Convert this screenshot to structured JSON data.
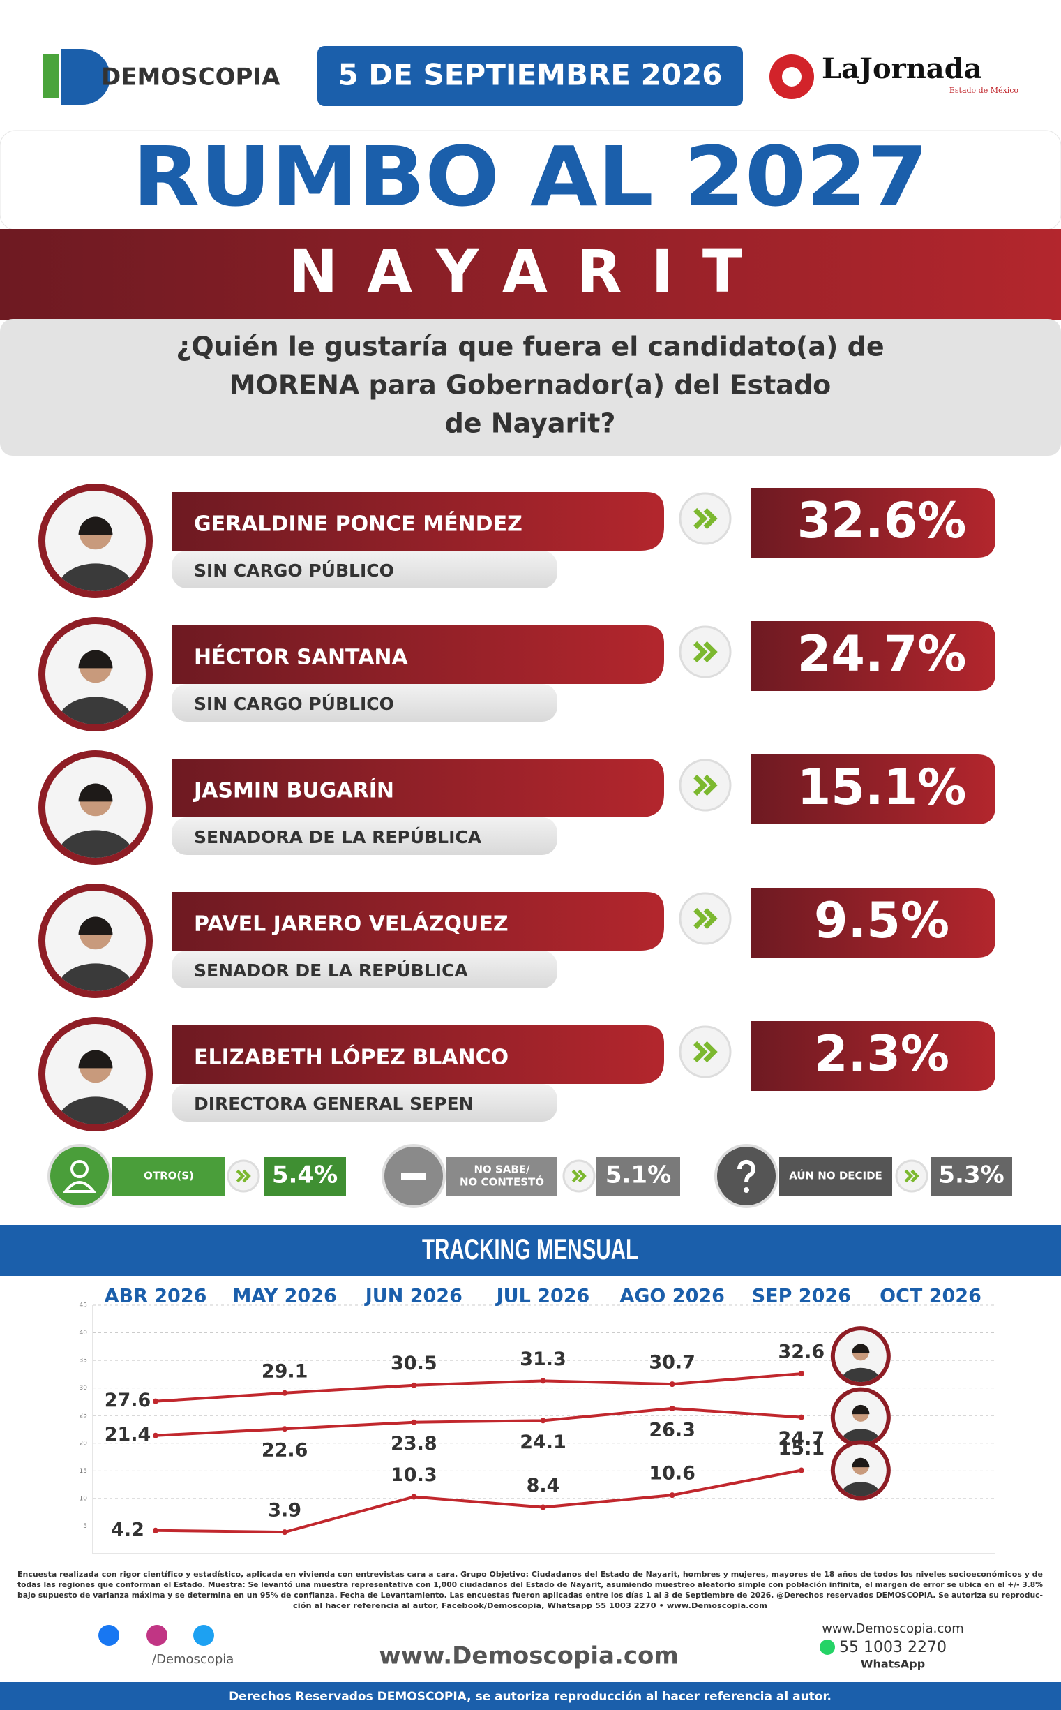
{
  "header": {
    "brand": "DEMOSCOPIA",
    "date": "5 DE SEPTIEMBRE 2026",
    "partner": "LaJornada",
    "partner_sub": "Estado de México"
  },
  "title": "RUMBO AL 2027",
  "state": "NAYARIT",
  "question": [
    "¿Quién le gustaría que fuera el candidato(a) de",
    "MORENA para Gobernador(a) del Estado",
    "de Nayarit?"
  ],
  "candidates": [
    {
      "name": "GERALDINE PONCE MÉNDEZ",
      "role": "SIN CARGO PÚBLICO",
      "value": "32.6%"
    },
    {
      "name": "HÉCTOR SANTANA",
      "role": "SIN CARGO PÚBLICO",
      "value": "24.7%"
    },
    {
      "name": "JASMIN BUGARÍN",
      "role": "SENADORA DE LA REPÚBLICA",
      "value": "15.1%"
    },
    {
      "name": "PAVEL JARERO VELÁZQUEZ",
      "role": "SENADOR DE LA REPÚBLICA",
      "value": "9.5%"
    },
    {
      "name": "ELIZABETH LÓPEZ BLANCO",
      "role": "DIRECTORA GENERAL SEPEN",
      "value": "2.3%"
    }
  ],
  "others": [
    {
      "label": [
        "OTRO(S)"
      ],
      "value": "5.4%"
    },
    {
      "label": [
        "NO SABE/",
        "NO CONTESTÓ"
      ],
      "value": "5.1%"
    },
    {
      "label": [
        "AÚN NO DECIDE"
      ],
      "value": "5.3%"
    }
  ],
  "chart_data": {
    "type": "line",
    "title": "TRACKING MENSUAL",
    "categories": [
      "ABR 2026",
      "MAY 2026",
      "JUN 2026",
      "JUL 2026",
      "AGO 2026",
      "SEP 2026",
      "OCT 2026"
    ],
    "series": [
      {
        "color": "#c1272d",
        "values": [
          27.6,
          29.1,
          30.5,
          31.3,
          30.7,
          32.6,
          null
        ]
      },
      {
        "color": "#c1272d",
        "values": [
          21.4,
          22.6,
          23.8,
          24.1,
          26.3,
          24.7,
          null
        ]
      },
      {
        "color": "#c1272d",
        "values": [
          4.2,
          3.9,
          10.3,
          8.4,
          10.6,
          15.1,
          null
        ]
      }
    ],
    "ylim": [
      0,
      45
    ],
    "yticks": [
      5,
      10,
      15,
      20,
      25,
      30,
      35,
      40,
      45
    ],
    "grid": true
  },
  "footer": {
    "note": [
      "Encuesta realizada con rigor científico y estadístico, aplicada en vivienda con entrevistas cara a cara. Grupo Objetivo: Ciudadanos del Estado de Nayarit, hombres y mujeres, mayores de 18 años de todos los niveles socioeconómicos y de",
      "todas las regiones que conforman el Estado. Muestra: Se levantó una muestra representativa con 1,000 ciudadanos del Estado de Nayarit, asumiendo muestreo aleatorio simple con población infinita, el margen de error se ubica en el +/- 3.8%",
      "bajo supuesto de varianza máxima y se determina en un 95% de confianza. Fecha de Levantamiento. Las encuestas fueron aplicadas entre los días 1 al 3 de Septiembre de 2026. @Derechos reservados DEMOSCOPIA. Se autoriza su reproduc-",
      "ción al hacer referencia al autor, Facebook/Demoscopia, Whatsapp 55 1003 2270 • www.Demoscopia.com"
    ],
    "social": "/Demoscopia",
    "web": "www.Demoscopia.com",
    "contact_web": "www.Demoscopia.com",
    "phone": "55 1003 2270",
    "whatsapp": "WhatsApp",
    "rights": "Derechos Reservados DEMOSCOPIA, se autoriza reproducción al hacer referencia al autor."
  }
}
